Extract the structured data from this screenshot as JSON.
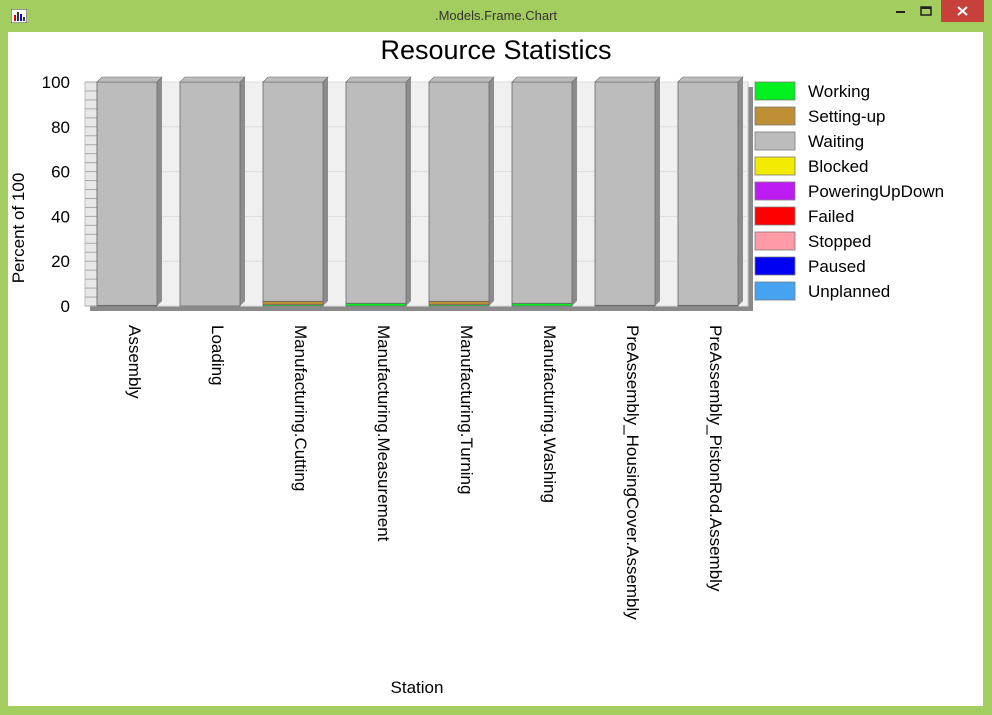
{
  "window": {
    "title": ".Models.Frame.Chart",
    "icon": "chart-app-icon",
    "controls": [
      "minimize-icon",
      "maximize-icon",
      "close-icon"
    ],
    "accent": "#a3cd5f",
    "close_color": "#c7413a"
  },
  "chart_data": {
    "type": "bar",
    "stacked": true,
    "title": "Resource Statistics",
    "xlabel": "Station",
    "ylabel": "Percent of 100",
    "ylim": [
      0,
      100
    ],
    "yticks": [
      "0",
      "20",
      "40",
      "60",
      "80",
      "100"
    ],
    "grid": true,
    "legend_position": "right",
    "categories": [
      "Assembly",
      "Loading",
      "Manufacturing.Cutting",
      "Manufacturing.Measurement",
      "Manufacturing.Turning",
      "Manufacturing.Washing",
      "PreAssembly_HousingCover.Assembly",
      "PreAssembly_PistonRod.Assembly"
    ],
    "series": [
      {
        "name": "Working",
        "color": "#00f020",
        "values": [
          0.3,
          0,
          0.6,
          1.2,
          0.6,
          1.2,
          0.3,
          0.3
        ]
      },
      {
        "name": "Setting-up",
        "color": "#be8f34",
        "values": [
          0,
          0,
          1.5,
          0,
          1.5,
          0,
          0,
          0
        ]
      },
      {
        "name": "Waiting",
        "color": "#bcbcbc",
        "values": [
          99.7,
          100,
          97.9,
          98.8,
          97.9,
          98.8,
          99.7,
          99.7
        ]
      },
      {
        "name": "Blocked",
        "color": "#f2ea00",
        "values": [
          0,
          0,
          0,
          0,
          0,
          0,
          0,
          0
        ]
      },
      {
        "name": "PoweringUpDown",
        "color": "#bc1cf2",
        "values": [
          0,
          0,
          0,
          0,
          0,
          0,
          0,
          0
        ]
      },
      {
        "name": "Failed",
        "color": "#ff0000",
        "values": [
          0,
          0,
          0,
          0,
          0,
          0,
          0,
          0
        ]
      },
      {
        "name": "Stopped",
        "color": "#ff9aa6",
        "values": [
          0,
          0,
          0,
          0,
          0,
          0,
          0,
          0
        ]
      },
      {
        "name": "Paused",
        "color": "#0000f2",
        "values": [
          0,
          0,
          0,
          0,
          0,
          0,
          0,
          0
        ]
      },
      {
        "name": "Unplanned",
        "color": "#46a3f2",
        "values": [
          0,
          0,
          0,
          0,
          0,
          0,
          0,
          0
        ]
      }
    ]
  }
}
